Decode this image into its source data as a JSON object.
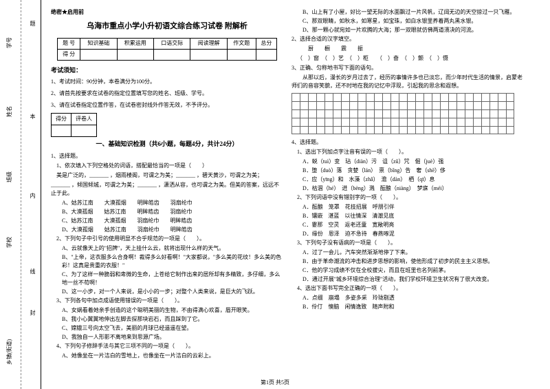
{
  "binding": {
    "labels": [
      "学号",
      "姓名",
      "班级",
      "学校",
      "乡镇(街道)"
    ],
    "marks": [
      "题",
      "本",
      "内",
      "线",
      "封"
    ]
  },
  "secret": "绝密★启用前",
  "title": "乌海市重点小学小升初语文综合练习试卷 附解析",
  "score_table": {
    "headers": [
      "题 号",
      "知识基础",
      "积累运用",
      "口语交际",
      "阅读理解",
      "作文题",
      "总分"
    ],
    "row2_label": "得 分"
  },
  "exam_notice_title": "考试须知：",
  "notices": [
    "1、考试时间：90分钟，本卷满分为100分。",
    "2、请首先按要求在试卷的指定位置填写您的姓名、班级、学号。",
    "3、请在试卷指定位置作答，在试卷密封线外作答无效，不予评分。"
  ],
  "mini_headers": [
    "得分",
    "评卷人"
  ],
  "section1_title": "一、基础知识检测（共6小题，每题4分，共计24分）",
  "q1": {
    "num": "1、选择题。",
    "sub": "1、依次填入下列空格处的词语，搭配最恰当的一项是（　　）",
    "line1": "美是广泛的，_______ ，烟雨楼阁，可谓之为美；_______ ，碧天黄沙，可谓之为美；",
    "line2": "_______ ，倾国倾城，可谓之为美；_______ ，潇洒从容，也可谓之为美。但美的答案，远远不止于此。",
    "opts": [
      "A、姑苏江南　　大漠孤烟　　明眸皓齿　　羽扇纶巾",
      "B、大漠孤烟　　姑苏江南　　明眸皓齿　　羽扇纶巾",
      "C、姑苏江南　　大漠孤烟　　羽扇纶巾　　明眸皓齿",
      "D、大漠孤烟　　姑苏江南　　羽扇纶巾　　明眸皓齿"
    ],
    "sub2": "2、下列句子中引号的使用明显不合乎规范的一项是（　　）。",
    "s2a": "A、云就像天上的\"招牌\"，天上挂什么云，就将出现什么样的天气。",
    "s2b": "B、\"上帝，这衣服多么合身啊！裁得多么好看啊！\"大家都说，\"多么美的花纹！多么美的色彩！这真是贵重的衣服！\"",
    "s2c": "C、为了这样一种脆弱和卑微的生命，上苍给它制作出来的居所却有多精致，多仔细，多么地一丝不苟啊！",
    "s2d": "D、这一小步，对一个人来说，是小小的一步；对整个人类来说，是巨大的飞跃。",
    "sub3": "3、下列各句中加点成语使用错误的一项是（　　）。",
    "s3a": "A、女娲看着她亲手创造的这个聪明美丽的生物，不由得满心欢喜，眉开眼笑。",
    "s3b": "B、我小心翼翼地伸出左脚去探那块岩石，而且踩到了它。",
    "s3c": "C、嫦娥三号向太空飞去，美丽的月球已经遥遥在望。",
    "s3d": "D、我独自一人形影不离地来到思源广场。",
    "sub4": "4、下列句子修辞手法与其它三项不同的一项是（　　）。",
    "s4a": "A、她像坐在一片洁白的雪地上，也像坐在一片洁白的云彩上。"
  },
  "right": {
    "s4b": "B、山上有了小屋，好比一望无际的水面飘过一片风帆，辽阔无边的天空掠过一只飞雁。",
    "s4c": "C、那双眼睛，如秋水，如寒星，如宝珠，如白水银里养着两丸黑水银。",
    "s4d": "D、那一颗心就宛如一片欢腾的大海；那一双眼就仿佛两道溃决的河流。",
    "q2": "2、选择合适的汉字填空。",
    "q2line": "　　厨　　橱　　震　　振",
    "q2blanks": "（　）窗　（　）艺　（　）柜　　（　）奋　（　）颤　（　）慑",
    "q3": "3、正确、匀称地书写下面的语句。",
    "q3text": "　　从那以后，漫长的岁月过去了，经历的事情许多也已淡忘，而少年时代生活的情景，启蒙老师们的音容笑貌，还不时地在我的记忆中浮现，引起我的思念和遐想。",
    "grid": {
      "rows": 5,
      "cols": 27
    },
    "q4": "4、选择题。",
    "q4_1": "1、选出下列加点字注音有误的一项（　　）。",
    "q4_1opts": [
      "A．蜕（tuì）变　玷（diàn）污　诅（zǔ）咒　倔（juè）强",
      "B．堕（duò）落　贪婪（lán）　禀（bǐng）告　奢（shē）侈",
      "C．应（yīng）和　水藻（zhǎ）　澹（dàn）　栖（qī）息",
      "D．枯涸（hé）　迸（bèng）溅　酝酿（niàng）　梦寐（méi）"
    ],
    "q4_2": "2、下列词语中没有错别字的一项（　　）。",
    "q4_2opts": [
      "A．酝酿　笼罩　花技招展　呼朋引伴",
      "B．镶嵌　湛蓝　以往情深　清澈见底",
      "C．霎那　空灵　返老还童　宽敞明亮",
      "D．缘份　恩泽　迫不急待　春燕啄泥"
    ],
    "q4_3": "3、下列句子没有语病的一项是（　　）。",
    "q4_3opts": [
      "A．过了一会儿，汽车突然渐渐地停了下来。",
      "B．由于革命潮流的冲击和进步思想的影响，使他形成了初步的民主主义思想。",
      "C．他的学习成绩不仅在全校拔尖，而且在班里也名列前茅。",
      "D．通过开展\"城乡环境综合治理\"活动，我们学校环境卫生状况有了很大改变。"
    ],
    "q4_4": "4、选出下面书写完全正确的一项（　　）。",
    "q4_4opts": [
      "A．点缀　崩塌　多姿多采　玲珑剔透"
    ],
    "q4_4b": "B．伶仃　懊脑　闲情逸致　随声附和"
  },
  "pagenum": "第1页 共5页"
}
